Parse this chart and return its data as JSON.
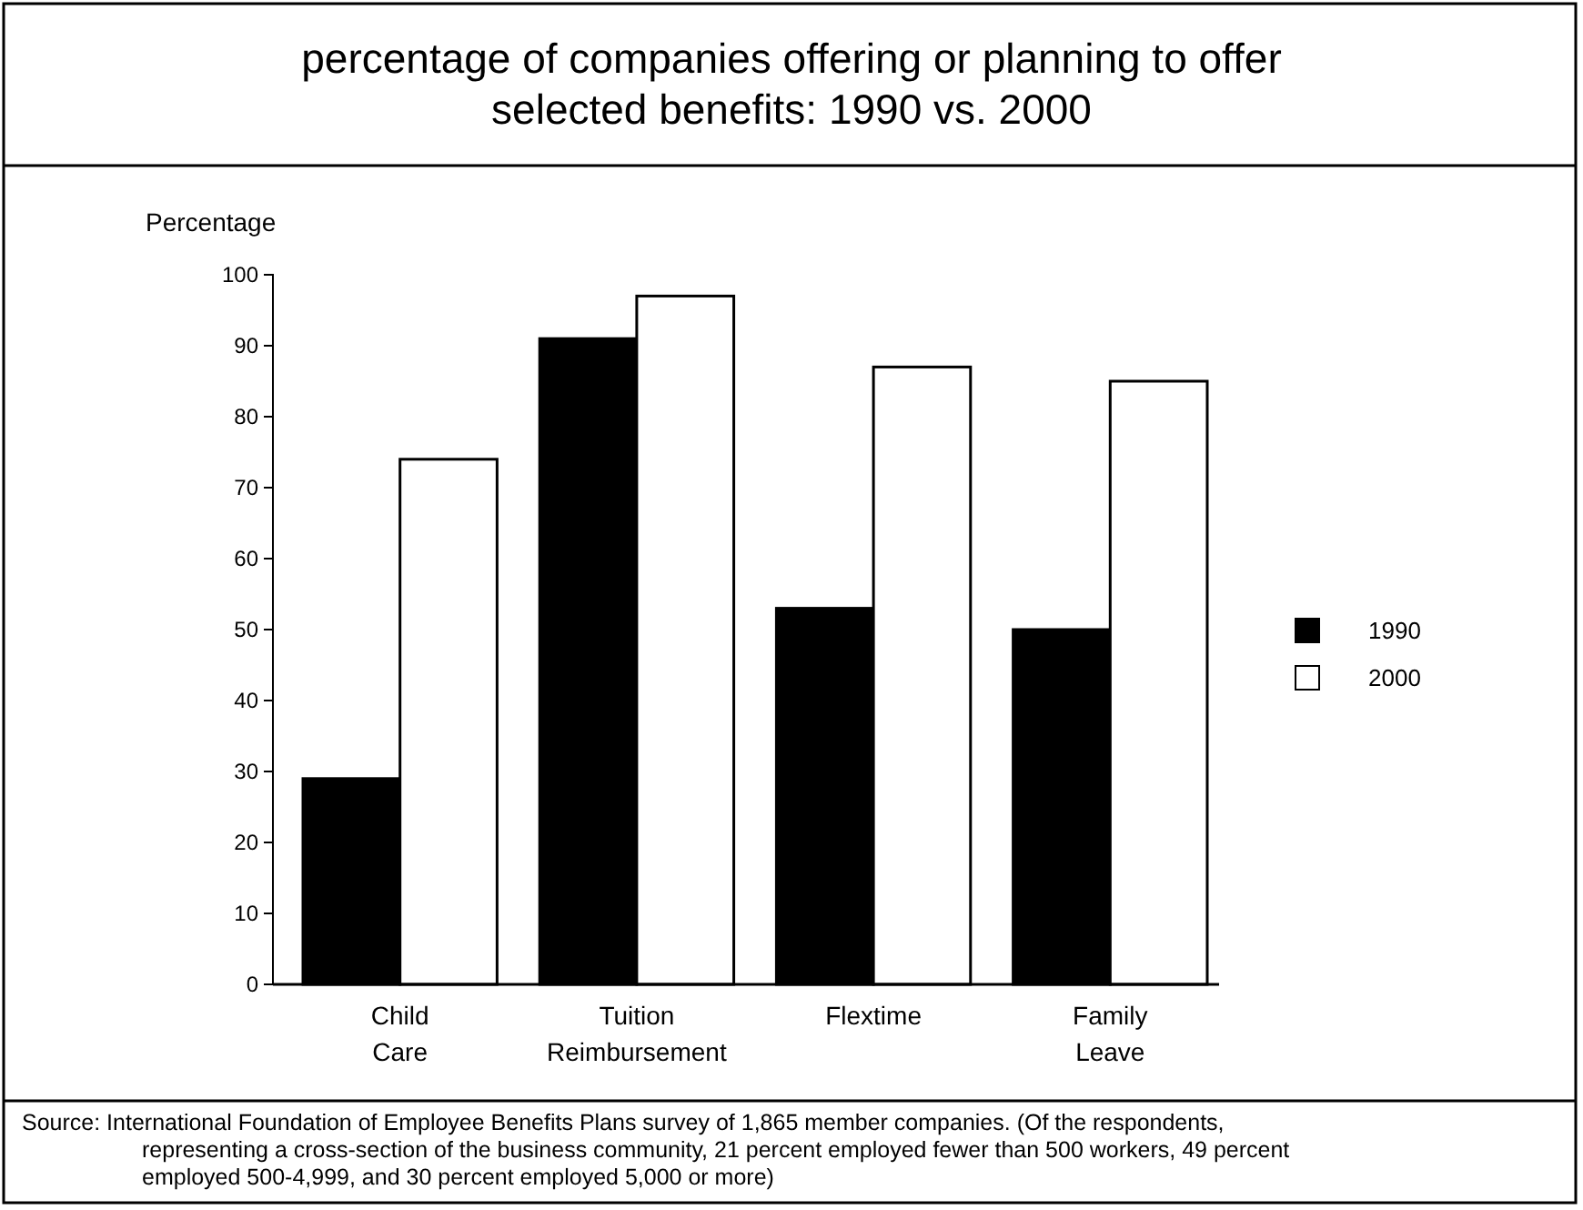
{
  "chart_data": {
    "type": "bar",
    "title": "percentage of companies offering or planning to offer selected benefits: 1990 vs. 2000",
    "ylabel": "Percentage",
    "categories": [
      "Child Care",
      "Tuition Reimbursement",
      "Flextime",
      "Family Leave"
    ],
    "series": [
      {
        "name": "1990",
        "color": "#000000",
        "values": [
          29,
          91,
          53,
          50
        ]
      },
      {
        "name": "2000",
        "color": "#ffffff",
        "values": [
          74,
          97,
          87,
          85
        ]
      }
    ],
    "ylim": [
      0,
      100
    ],
    "yticks": [
      0,
      10,
      20,
      30,
      40,
      50,
      60,
      70,
      80,
      90,
      100
    ],
    "grid": false,
    "legend": "right",
    "annotations": [
      "Source: International Foundation of Employee Benefits Plans survey of 1,865 member companies. (Of the respondents, representing a cross-section of the business community, 21 percent employed fewer than 500 workers, 49 percent employed 500-4,999, and 30 percent employed 5,000 or more)"
    ]
  }
}
